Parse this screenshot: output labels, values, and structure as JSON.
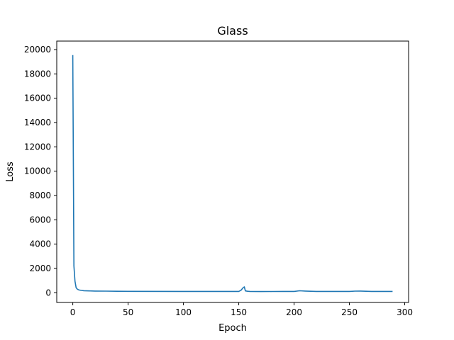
{
  "chart_data": {
    "type": "line",
    "title": "Glass",
    "xlabel": "Epoch",
    "ylabel": "Loss",
    "xlim": [
      -14.5,
      303.5
    ],
    "ylim": [
      -800,
      20700
    ],
    "xticks": [
      0,
      50,
      100,
      150,
      200,
      250,
      300
    ],
    "yticks": [
      0,
      2000,
      4000,
      6000,
      8000,
      10000,
      12000,
      14000,
      16000,
      18000,
      20000
    ],
    "grid": false,
    "series": [
      {
        "color": "#1f77b4",
        "x": [
          0,
          1,
          2,
          3,
          4,
          5,
          6,
          8,
          10,
          15,
          20,
          30,
          40,
          50,
          100,
          150,
          152,
          154,
          155,
          156,
          158,
          160,
          170,
          180,
          190,
          200,
          205,
          210,
          220,
          250,
          255,
          260,
          270,
          289
        ],
        "y": [
          19550,
          2200,
          950,
          420,
          300,
          250,
          220,
          190,
          170,
          150,
          140,
          130,
          120,
          115,
          110,
          110,
          200,
          420,
          480,
          150,
          120,
          110,
          100,
          105,
          110,
          110,
          160,
          140,
          110,
          110,
          130,
          140,
          110,
          110
        ]
      }
    ]
  }
}
